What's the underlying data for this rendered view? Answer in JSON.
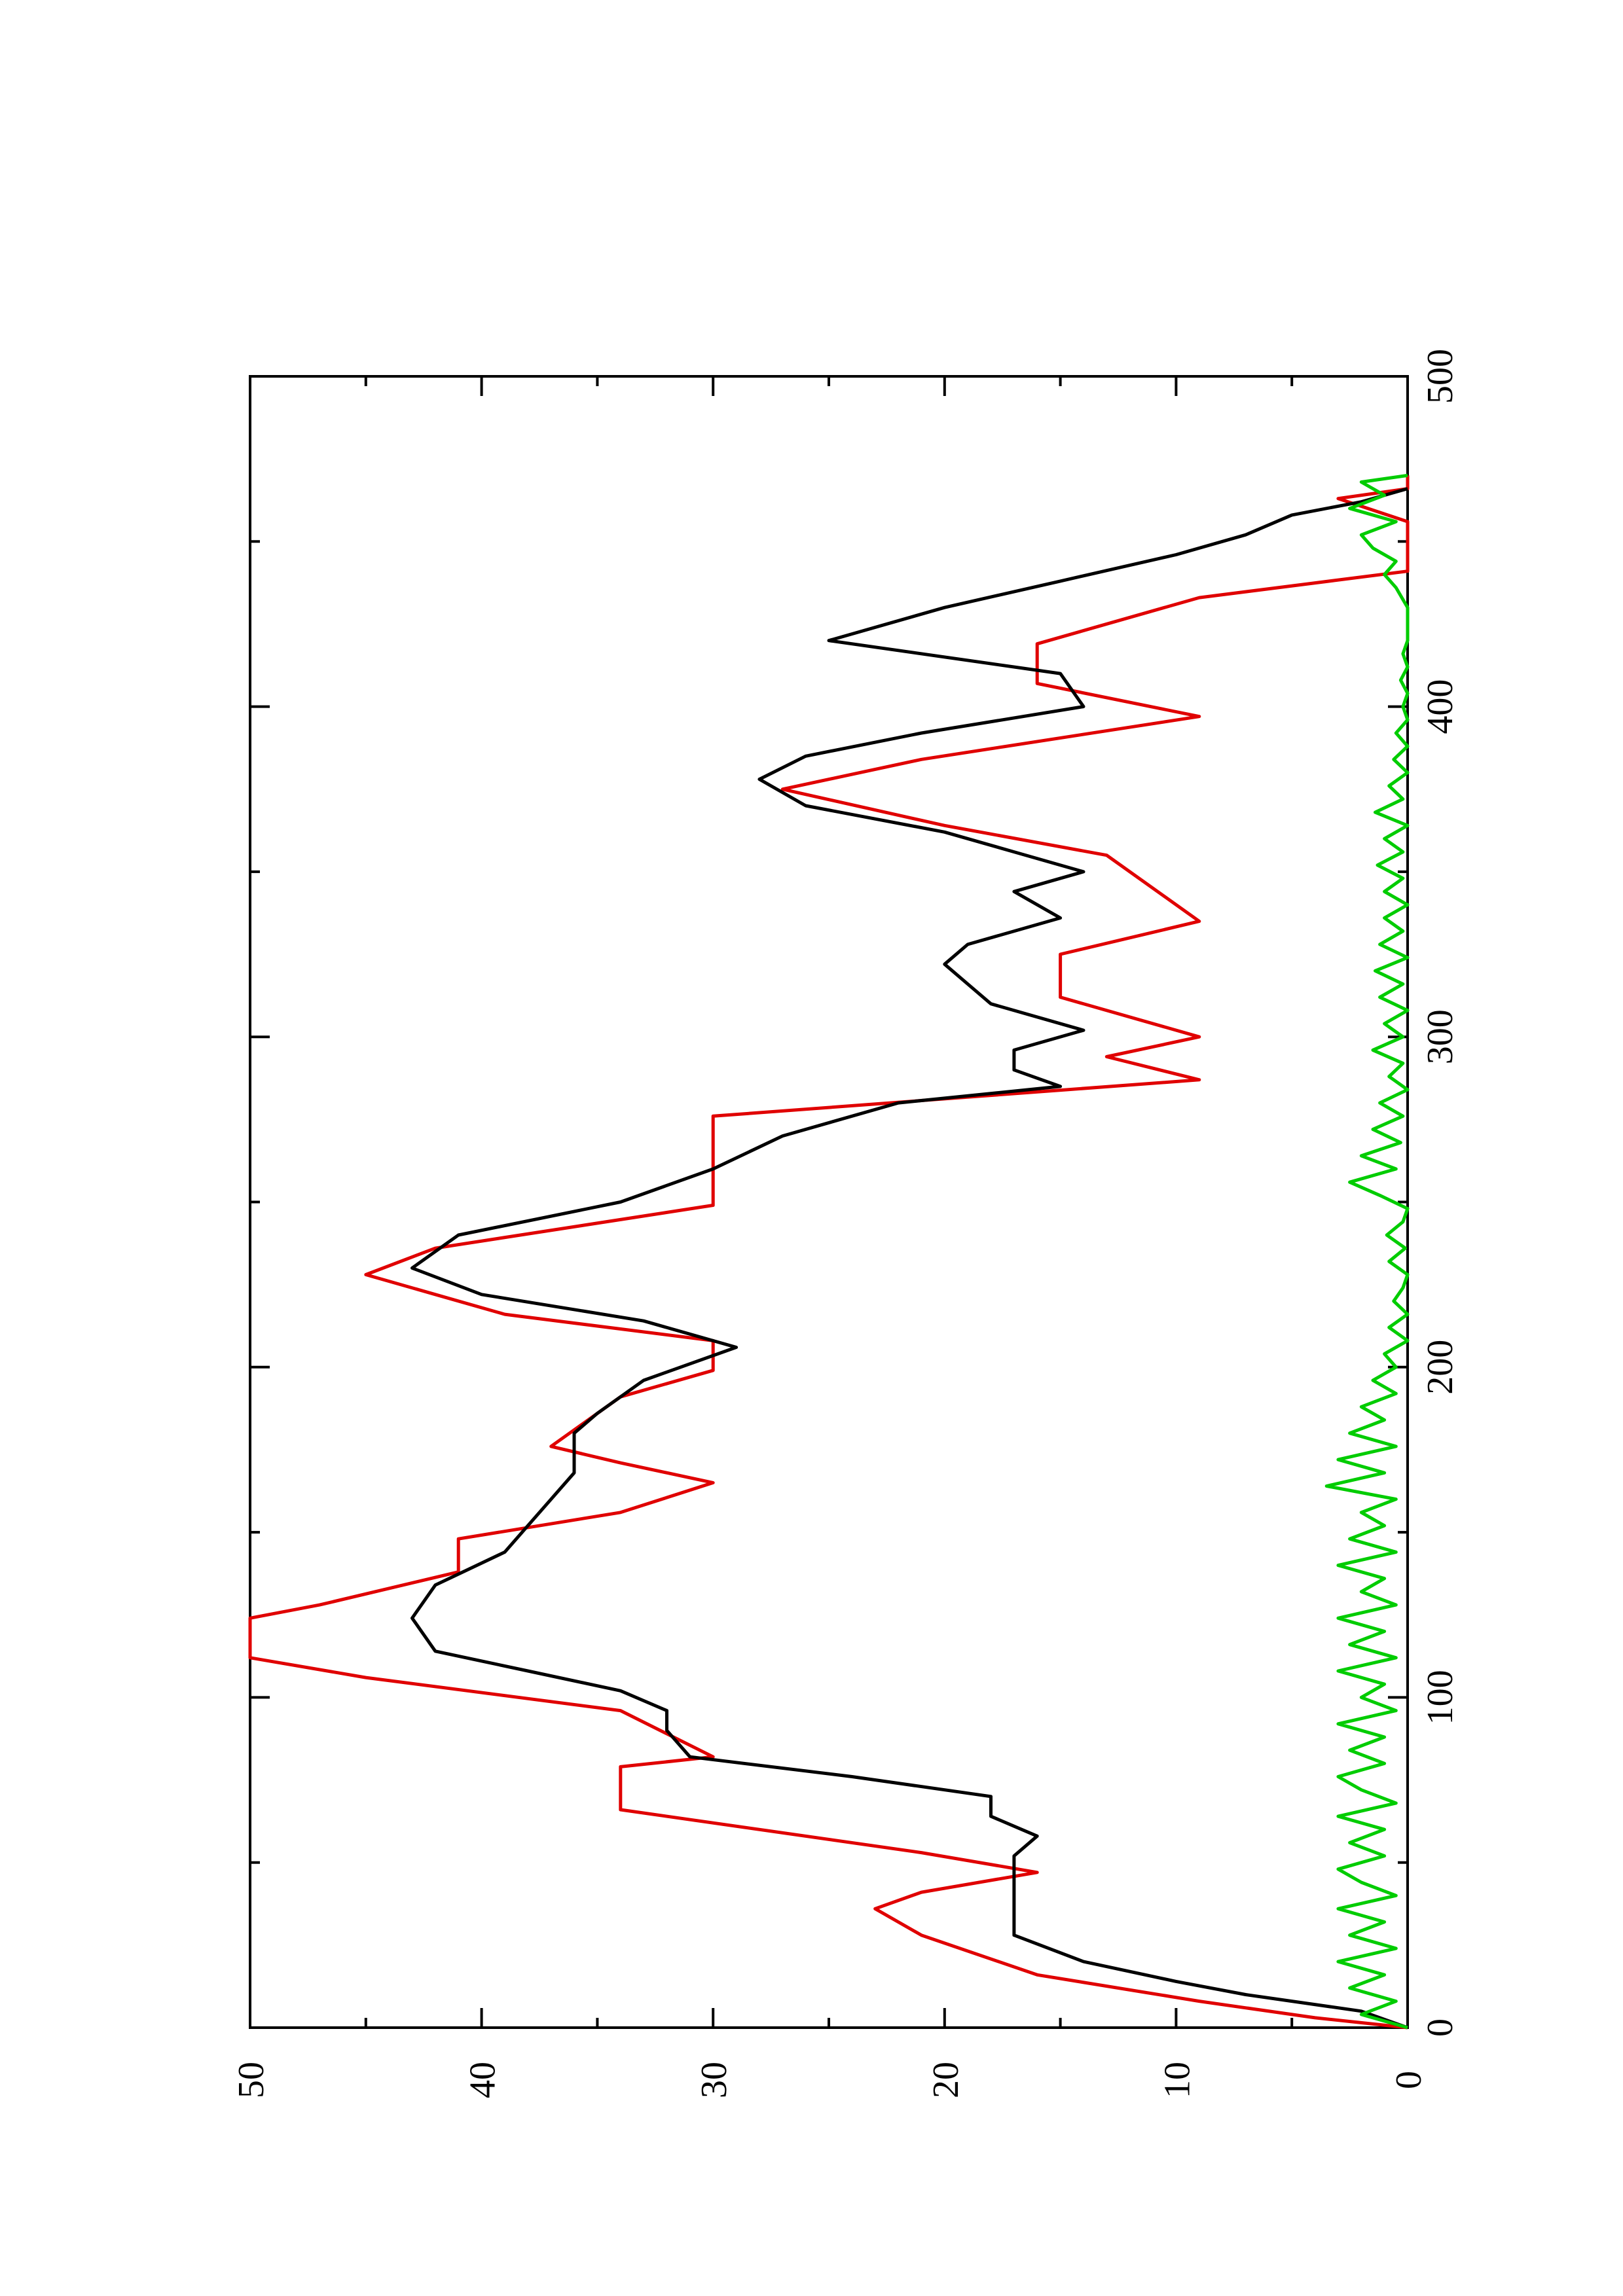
{
  "chart_data": {
    "type": "line",
    "orientation": "rotated 90 degrees counter-clockwise",
    "title": "",
    "xlabel": "",
    "ylabel": "",
    "xlim": [
      0,
      500
    ],
    "ylim": [
      0,
      50
    ],
    "x_ticks": [
      0,
      100,
      200,
      300,
      400,
      500
    ],
    "y_ticks": [
      0,
      10,
      20,
      30,
      40,
      50
    ],
    "x_tick_labels": [
      "0",
      "100",
      "200",
      "300",
      "400",
      "500"
    ],
    "y_tick_labels": [
      "0",
      "10",
      "20",
      "30",
      "40",
      "50"
    ],
    "grid": false,
    "legend": "none",
    "series": [
      {
        "color": "#e00000",
        "step": true,
        "points": [
          [
            0,
            0
          ],
          [
            3,
            4
          ],
          [
            8,
            9
          ],
          [
            16,
            16
          ],
          [
            28,
            21
          ],
          [
            36,
            23
          ],
          [
            41,
            21
          ],
          [
            47,
            16
          ],
          [
            53,
            21
          ],
          [
            66,
            34
          ],
          [
            79,
            34
          ],
          [
            82,
            30
          ],
          [
            96,
            34
          ],
          [
            106,
            45
          ],
          [
            112,
            50
          ],
          [
            124,
            50
          ],
          [
            128,
            47
          ],
          [
            138,
            41
          ],
          [
            148,
            41
          ],
          [
            156,
            34
          ],
          [
            165,
            30
          ],
          [
            171,
            34
          ],
          [
            176,
            37
          ],
          [
            191,
            34
          ],
          [
            199,
            30
          ],
          [
            208,
            30
          ],
          [
            216,
            39
          ],
          [
            222,
            42
          ],
          [
            228,
            45
          ],
          [
            236,
            42
          ],
          [
            249,
            30
          ],
          [
            276,
            30
          ],
          [
            287,
            9
          ],
          [
            294,
            13
          ],
          [
            300,
            9
          ],
          [
            312,
            15
          ],
          [
            325,
            15
          ],
          [
            335,
            9
          ],
          [
            355,
            13
          ],
          [
            364,
            20
          ],
          [
            375,
            27
          ],
          [
            384,
            21
          ],
          [
            397,
            9
          ],
          [
            407,
            16
          ],
          [
            419,
            16
          ],
          [
            433,
            9
          ],
          [
            441,
            0
          ],
          [
            450,
            0
          ],
          [
            456,
            0
          ],
          [
            463,
            3
          ],
          [
            466,
            0
          ],
          [
            470,
            0
          ]
        ]
      },
      {
        "color": "#000000",
        "step": false,
        "points": [
          [
            0,
            0
          ],
          [
            5,
            2
          ],
          [
            10,
            7
          ],
          [
            14,
            10
          ],
          [
            20,
            14
          ],
          [
            28,
            17
          ],
          [
            36,
            17
          ],
          [
            44,
            17
          ],
          [
            52,
            17
          ],
          [
            58,
            16
          ],
          [
            64,
            18
          ],
          [
            70,
            18
          ],
          [
            76,
            24
          ],
          [
            82,
            31
          ],
          [
            90,
            32
          ],
          [
            96,
            32
          ],
          [
            102,
            34
          ],
          [
            108,
            38
          ],
          [
            114,
            42
          ],
          [
            124,
            43
          ],
          [
            134,
            42
          ],
          [
            144,
            39
          ],
          [
            152,
            38
          ],
          [
            160,
            37
          ],
          [
            168,
            36
          ],
          [
            174,
            36
          ],
          [
            180,
            36
          ],
          [
            186,
            35
          ],
          [
            196,
            33
          ],
          [
            206,
            29
          ],
          [
            214,
            33
          ],
          [
            222,
            40
          ],
          [
            230,
            43
          ],
          [
            240,
            41
          ],
          [
            250,
            34
          ],
          [
            260,
            30
          ],
          [
            270,
            27
          ],
          [
            280,
            22
          ],
          [
            285,
            15
          ],
          [
            290,
            17
          ],
          [
            296,
            17
          ],
          [
            302,
            14
          ],
          [
            310,
            18
          ],
          [
            316,
            19
          ],
          [
            322,
            20
          ],
          [
            328,
            19
          ],
          [
            336,
            15
          ],
          [
            344,
            17
          ],
          [
            350,
            14
          ],
          [
            356,
            17
          ],
          [
            362,
            20
          ],
          [
            370,
            26
          ],
          [
            378,
            28
          ],
          [
            385,
            26
          ],
          [
            392,
            21
          ],
          [
            400,
            14
          ],
          [
            410,
            15
          ],
          [
            420,
            25
          ],
          [
            430,
            20
          ],
          [
            438,
            15
          ],
          [
            446,
            10
          ],
          [
            452,
            7
          ],
          [
            458,
            5
          ],
          [
            462,
            2
          ],
          [
            466,
            0
          ]
        ]
      },
      {
        "color": "#00cc00",
        "step": false,
        "points": [
          [
            0,
            0
          ],
          [
            4,
            2
          ],
          [
            8,
            0.5
          ],
          [
            12,
            2.5
          ],
          [
            16,
            1
          ],
          [
            20,
            3
          ],
          [
            24,
            0.5
          ],
          [
            28,
            2.5
          ],
          [
            32,
            1
          ],
          [
            36,
            3
          ],
          [
            40,
            0.5
          ],
          [
            44,
            2
          ],
          [
            48,
            3
          ],
          [
            52,
            1
          ],
          [
            56,
            2.5
          ],
          [
            60,
            1
          ],
          [
            64,
            3
          ],
          [
            68,
            0.5
          ],
          [
            72,
            2
          ],
          [
            76,
            3
          ],
          [
            80,
            1
          ],
          [
            84,
            2.5
          ],
          [
            88,
            1
          ],
          [
            92,
            3
          ],
          [
            96,
            0.5
          ],
          [
            100,
            2
          ],
          [
            104,
            1
          ],
          [
            108,
            3
          ],
          [
            112,
            0.5
          ],
          [
            116,
            2.5
          ],
          [
            120,
            1
          ],
          [
            124,
            3
          ],
          [
            128,
            0.5
          ],
          [
            132,
            2
          ],
          [
            136,
            1
          ],
          [
            140,
            3
          ],
          [
            144,
            0.5
          ],
          [
            148,
            2.5
          ],
          [
            152,
            1
          ],
          [
            156,
            2
          ],
          [
            160,
            0.5
          ],
          [
            164,
            3.5
          ],
          [
            168,
            1
          ],
          [
            172,
            3
          ],
          [
            176,
            0.5
          ],
          [
            180,
            2.5
          ],
          [
            184,
            1
          ],
          [
            188,
            2
          ],
          [
            192,
            0.5
          ],
          [
            196,
            1.5
          ],
          [
            200,
            0.5
          ],
          [
            204,
            1
          ],
          [
            208,
            0
          ],
          [
            212,
            0.8
          ],
          [
            216,
            0
          ],
          [
            220,
            0.6
          ],
          [
            224,
            0.2
          ],
          [
            228,
            0
          ],
          [
            232,
            0.8
          ],
          [
            236,
            0.1
          ],
          [
            240,
            0.9
          ],
          [
            244,
            0.2
          ],
          [
            248,
            0
          ],
          [
            252,
            1.2
          ],
          [
            256,
            2.5
          ],
          [
            260,
            0.5
          ],
          [
            264,
            2
          ],
          [
            268,
            0.3
          ],
          [
            272,
            1.5
          ],
          [
            276,
            0.2
          ],
          [
            280,
            1.2
          ],
          [
            284,
            0
          ],
          [
            288,
            0.8
          ],
          [
            292,
            0.2
          ],
          [
            296,
            1.5
          ],
          [
            300,
            0.2
          ],
          [
            304,
            1
          ],
          [
            308,
            0
          ],
          [
            312,
            1.2
          ],
          [
            316,
            0.2
          ],
          [
            320,
            1.4
          ],
          [
            324,
            0
          ],
          [
            328,
            1.2
          ],
          [
            332,
            0.2
          ],
          [
            336,
            1
          ],
          [
            340,
            0
          ],
          [
            344,
            1
          ],
          [
            348,
            0.2
          ],
          [
            352,
            1.3
          ],
          [
            356,
            0.2
          ],
          [
            360,
            1
          ],
          [
            364,
            0
          ],
          [
            368,
            1.4
          ],
          [
            372,
            0.2
          ],
          [
            376,
            0.8
          ],
          [
            380,
            0
          ],
          [
            384,
            0.6
          ],
          [
            388,
            0
          ],
          [
            392,
            0.5
          ],
          [
            396,
            0
          ],
          [
            400,
            0.2
          ],
          [
            404,
            0
          ],
          [
            408,
            0.3
          ],
          [
            412,
            0
          ],
          [
            416,
            0.2
          ],
          [
            420,
            0
          ],
          [
            430,
            0
          ],
          [
            436,
            0.5
          ],
          [
            440,
            1
          ],
          [
            444,
            0.5
          ],
          [
            448,
            1.5
          ],
          [
            452,
            2
          ],
          [
            456,
            0.5
          ],
          [
            460,
            2.5
          ],
          [
            464,
            1
          ],
          [
            468,
            2
          ],
          [
            470,
            0
          ]
        ]
      }
    ]
  }
}
